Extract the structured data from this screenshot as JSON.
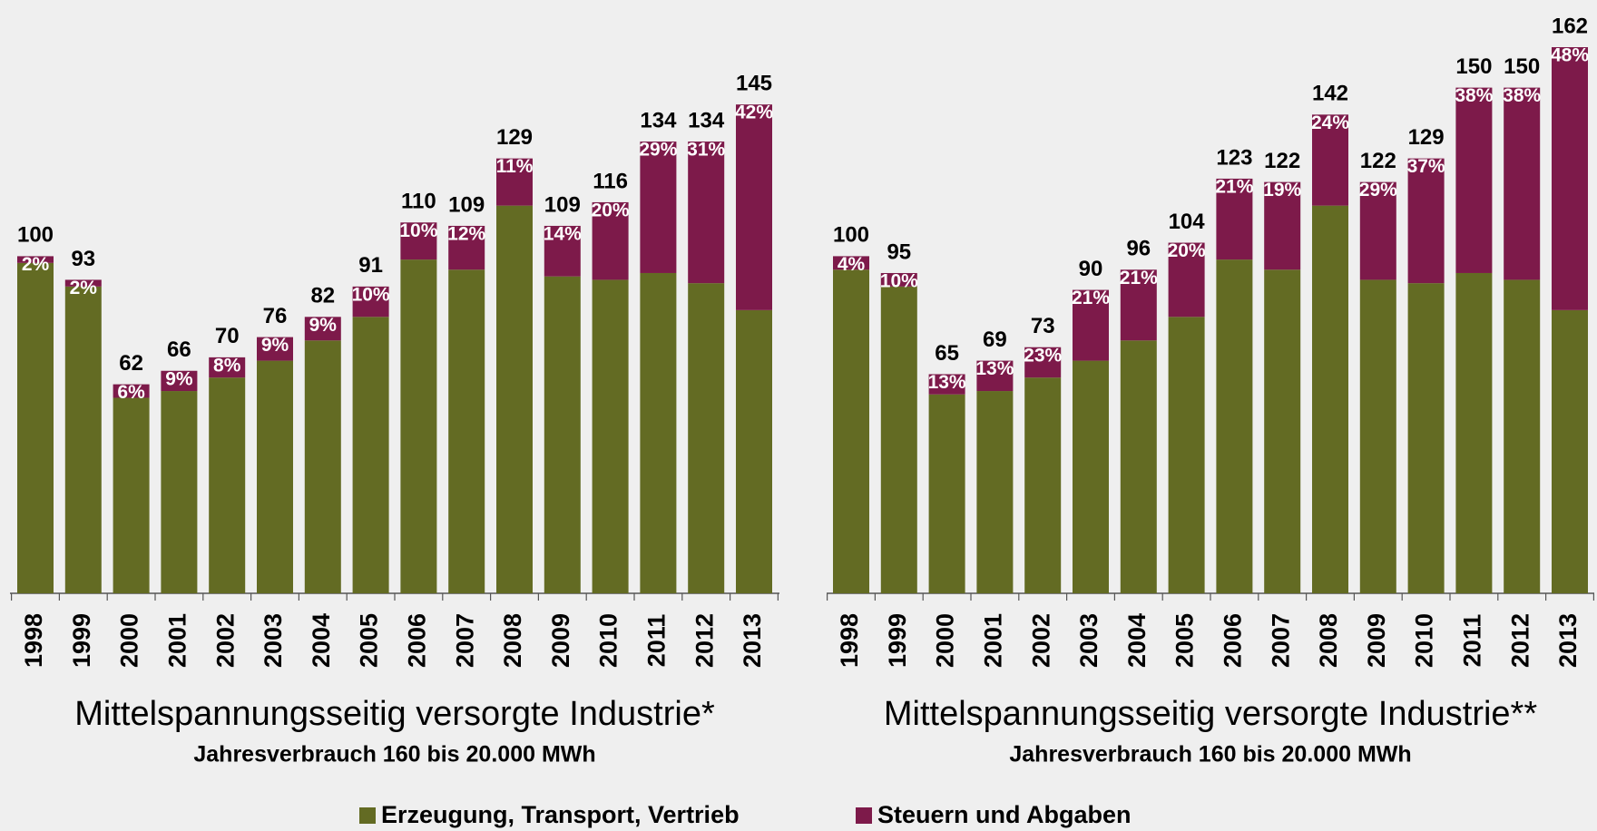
{
  "chart_data": [
    {
      "type": "bar",
      "stacked": true,
      "title": "Mittelspannungsseitig versorgte Industrie*",
      "subtitle": "Jahresverbrauch 160 bis 20.000 MWh",
      "categories": [
        "1998",
        "1999",
        "2000",
        "2001",
        "2002",
        "2003",
        "2004",
        "2005",
        "2006",
        "2007",
        "2008",
        "2009",
        "2010",
        "2011",
        "2012",
        "2013"
      ],
      "series": [
        {
          "name": "Erzeugung, Transport, Vertrieb",
          "color": "#636b23",
          "values": [
            98,
            91,
            58,
            60,
            64,
            69,
            75,
            82,
            99,
            96,
            115,
            94,
            93,
            95,
            92,
            84
          ]
        },
        {
          "name": "Steuern und Abgaben",
          "color": "#7d1a4a",
          "values": [
            2,
            2,
            4,
            6,
            6,
            7,
            7,
            9,
            11,
            13,
            14,
            15,
            23,
            39,
            42,
            61
          ],
          "value_labels": [
            "2%",
            "2%",
            "6%",
            "9%",
            "8%",
            "9%",
            "9%",
            "10%",
            "10%",
            "12%",
            "11%",
            "14%",
            "20%",
            "29%",
            "31%",
            "42%"
          ]
        }
      ],
      "totals": [
        100,
        93,
        62,
        66,
        70,
        76,
        82,
        91,
        110,
        109,
        129,
        109,
        116,
        134,
        134,
        145
      ]
    },
    {
      "type": "bar",
      "stacked": true,
      "title": "Mittelspannungsseitig versorgte Industrie**",
      "subtitle": "Jahresverbrauch 160 bis 20.000 MWh",
      "categories": [
        "1998",
        "1999",
        "2000",
        "2001",
        "2002",
        "2003",
        "2004",
        "2005",
        "2006",
        "2007",
        "2008",
        "2009",
        "2010",
        "2011",
        "2012",
        "2013"
      ],
      "series": [
        {
          "name": "Erzeugung, Transport, Vertrieb",
          "color": "#636b23",
          "values": [
            96,
            91,
            59,
            60,
            64,
            69,
            75,
            82,
            99,
            96,
            115,
            93,
            92,
            95,
            93,
            84
          ]
        },
        {
          "name": "Steuern und Abgaben",
          "color": "#7d1a4a",
          "values": [
            4,
            4,
            6,
            9,
            9,
            21,
            21,
            22,
            24,
            26,
            27,
            29,
            37,
            55,
            57,
            78
          ],
          "value_labels": [
            "4%",
            "10%",
            "13%",
            "13%",
            "23%",
            "21%",
            "21%",
            "20%",
            "21%",
            "19%",
            "24%",
            "29%",
            "37%",
            "38%",
            "38%",
            "48%"
          ]
        }
      ],
      "totals": [
        100,
        95,
        65,
        69,
        73,
        90,
        96,
        104,
        123,
        122,
        142,
        122,
        129,
        150,
        150,
        162
      ]
    }
  ]
}
